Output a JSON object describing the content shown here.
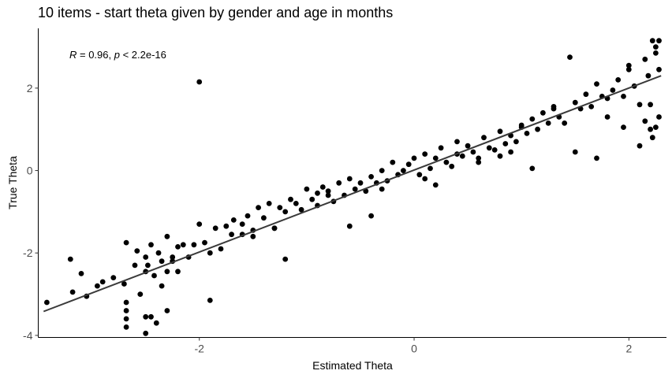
{
  "chart_data": {
    "type": "scatter",
    "title": "10 items - start theta given by gender and age in months",
    "xlabel": "Estimated Theta",
    "ylabel": "True Theta",
    "xlim": [
      -3.5,
      2.35
    ],
    "ylim": [
      -4.05,
      3.45
    ],
    "xticks": [
      -2,
      0,
      2
    ],
    "yticks": [
      -4,
      -2,
      0,
      2
    ],
    "grid": false,
    "annotation": {
      "r_symbol": "R",
      "r_text": " = 0.96, ",
      "p_symbol": "p",
      "p_text": " < 2.2e-16"
    },
    "fit_line": {
      "x": [
        -3.45,
        2.3
      ],
      "y": [
        -3.42,
        2.3
      ]
    },
    "points_x": [
      -3.42,
      -3.2,
      -3.18,
      -3.1,
      -3.05,
      -2.95,
      -2.9,
      -2.8,
      -2.7,
      -2.68,
      -2.68,
      -2.68,
      -2.68,
      -2.68,
      -2.6,
      -2.58,
      -2.55,
      -2.5,
      -2.5,
      -2.5,
      -2.5,
      -2.48,
      -2.45,
      -2.42,
      -2.38,
      -2.35,
      -2.35,
      -2.3,
      -2.3,
      -2.25,
      -2.2,
      -2.2,
      -2.15,
      -2.1,
      -2.05,
      -2.0,
      -1.95,
      -1.9,
      -1.85,
      -1.8,
      -1.75,
      -1.7,
      -1.68,
      -1.6,
      -1.55,
      -1.5,
      -1.45,
      -1.4,
      -1.35,
      -1.3,
      -1.25,
      -1.2,
      -1.15,
      -1.1,
      -1.05,
      -1.0,
      -0.95,
      -0.9,
      -0.85,
      -0.8,
      -0.75,
      -0.7,
      -0.65,
      -0.6,
      -0.55,
      -0.5,
      -0.45,
      -0.4,
      -0.35,
      -0.3,
      -0.25,
      -0.2,
      -0.15,
      -0.1,
      -0.05,
      0.0,
      0.05,
      0.1,
      0.15,
      0.2,
      0.25,
      0.3,
      0.35,
      0.4,
      0.45,
      0.5,
      0.55,
      0.6,
      0.65,
      0.7,
      0.75,
      0.8,
      0.85,
      0.9,
      0.95,
      1.0,
      1.05,
      1.1,
      1.15,
      1.2,
      1.25,
      1.3,
      1.35,
      1.4,
      1.45,
      1.5,
      1.55,
      1.6,
      1.65,
      1.7,
      1.75,
      1.8,
      1.85,
      1.9,
      1.95,
      2.0,
      2.05,
      2.1,
      2.15,
      2.18,
      2.2,
      2.22,
      2.25,
      2.25,
      2.28,
      2.28,
      2.15,
      2.2,
      2.25,
      2.1,
      2.22,
      2.28,
      2.0,
      1.8,
      1.95,
      1.5,
      1.3,
      1.0,
      0.9,
      0.4,
      0.1,
      -0.3,
      -0.8,
      -1.3,
      -1.6,
      -2.25,
      -2.3,
      -2.4,
      -2.45,
      -1.9,
      -1.2,
      -0.6,
      0.2,
      0.8,
      1.7,
      -2.0,
      -1.5,
      -0.9,
      -0.4,
      0.6,
      1.1
    ],
    "points_y": [
      -3.2,
      -2.15,
      -2.95,
      -2.5,
      -3.05,
      -2.8,
      -2.7,
      -2.6,
      -2.75,
      -3.2,
      -3.4,
      -3.6,
      -3.8,
      -1.75,
      -2.3,
      -1.95,
      -3.0,
      -2.1,
      -2.45,
      -3.55,
      -3.95,
      -2.3,
      -1.8,
      -2.55,
      -2.0,
      -2.2,
      -2.8,
      -1.6,
      -2.45,
      -2.2,
      -1.85,
      -2.45,
      -1.8,
      -2.1,
      -1.8,
      -1.3,
      -1.75,
      -2.0,
      -1.4,
      -1.9,
      -1.35,
      -1.55,
      -1.2,
      -1.3,
      -1.1,
      -1.45,
      -0.9,
      -1.15,
      -0.8,
      -1.4,
      -0.9,
      -1.0,
      -0.7,
      -0.8,
      -0.95,
      -0.45,
      -0.7,
      -0.85,
      -0.4,
      -0.5,
      -0.75,
      -0.3,
      -0.6,
      -0.2,
      -0.45,
      -0.3,
      -0.5,
      -0.15,
      -0.3,
      0.0,
      -0.25,
      0.2,
      -0.1,
      0.0,
      0.15,
      0.3,
      -0.1,
      0.4,
      0.05,
      0.3,
      0.55,
      0.2,
      0.1,
      0.7,
      0.35,
      0.6,
      0.45,
      0.3,
      0.8,
      0.55,
      0.5,
      0.95,
      0.65,
      0.85,
      0.7,
      1.05,
      0.9,
      1.25,
      1.0,
      1.4,
      1.15,
      1.5,
      1.3,
      1.15,
      2.75,
      1.65,
      1.5,
      1.85,
      1.55,
      2.1,
      1.8,
      1.75,
      1.95,
      2.2,
      1.8,
      2.45,
      2.05,
      1.6,
      2.7,
      2.3,
      1.0,
      3.15,
      2.85,
      3.0,
      2.45,
      3.15,
      1.2,
      1.6,
      1.05,
      0.6,
      0.8,
      1.3,
      2.55,
      1.3,
      1.05,
      0.45,
      1.55,
      1.1,
      0.45,
      0.4,
      -0.2,
      -0.45,
      -0.6,
      -1.4,
      -1.55,
      -2.1,
      -3.4,
      -3.7,
      -3.55,
      -3.15,
      -2.15,
      -1.35,
      -0.35,
      0.35,
      0.3,
      2.15,
      -1.6,
      -0.55,
      -1.1,
      0.2,
      0.05,
      1.45
    ]
  }
}
